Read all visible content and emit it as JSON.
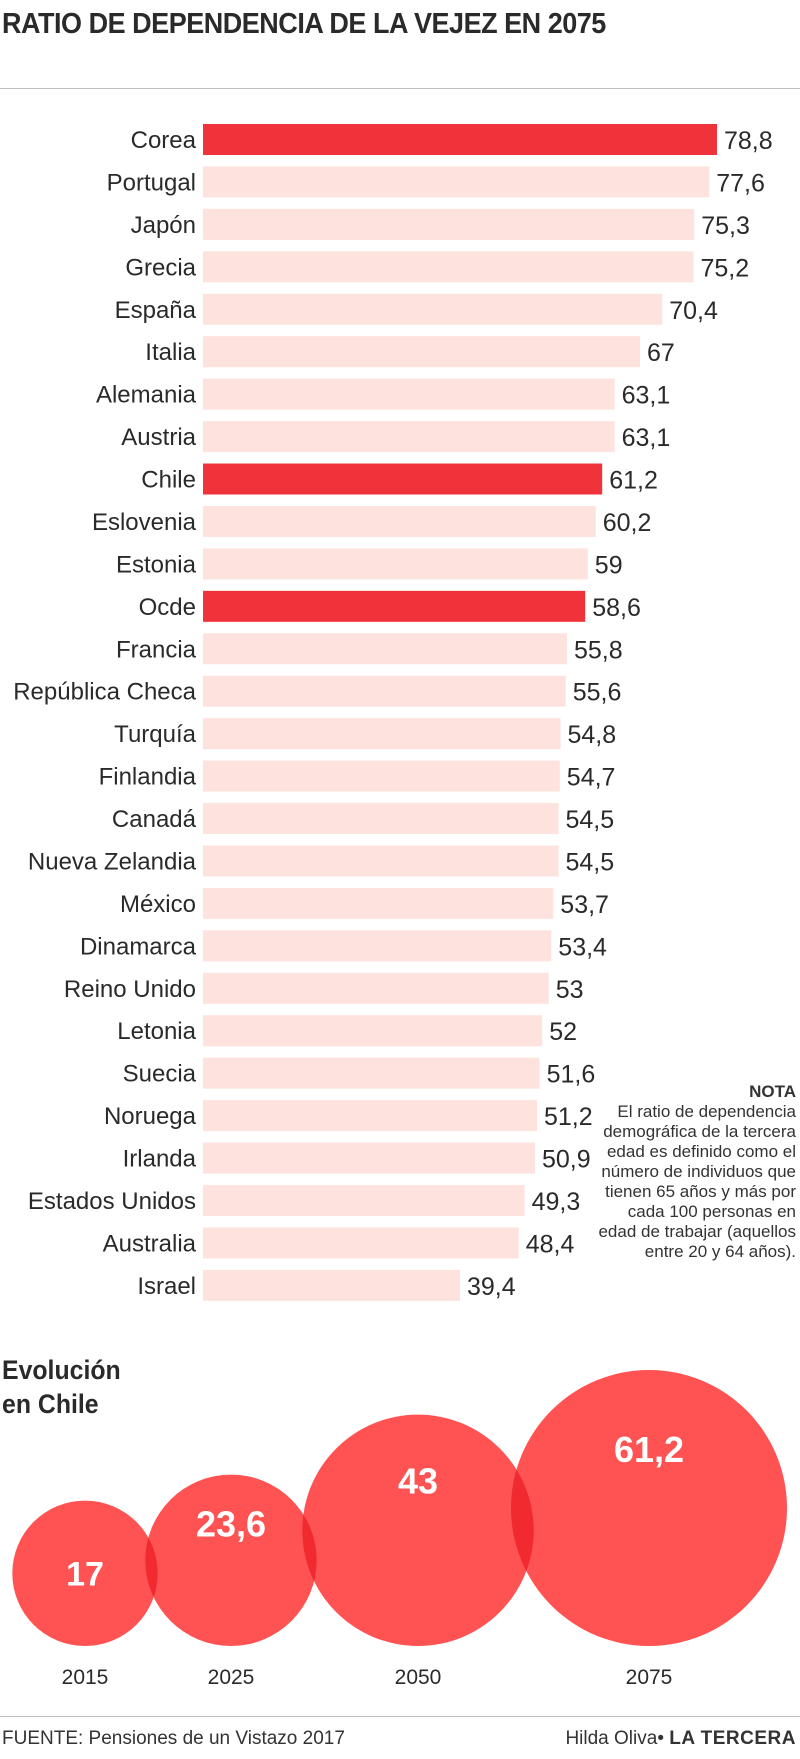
{
  "colors": {
    "highlight": "#f0333a",
    "bar": "#fde2de",
    "bubble": "#ff5252",
    "overlap": "#f02a2f"
  },
  "chart_data": [
    {
      "type": "bar",
      "title": "RATIO DE DEPENDENCIA DE LA VEJEZ EN 2075",
      "orientation": "horizontal",
      "categories": [
        "Corea",
        "Portugal",
        "Japón",
        "Grecia",
        "España",
        "Italia",
        "Alemania",
        "Austria",
        "Chile",
        "Eslovenia",
        "Estonia",
        "Ocde",
        "Francia",
        "República Checa",
        "Turquía",
        "Finlandia",
        "Canadá",
        "Nueva Zelandia",
        "México",
        "Dinamarca",
        "Reino Unido",
        "Letonia",
        "Suecia",
        "Noruega",
        "Irlanda",
        "Estados Unidos",
        "Australia",
        "Israel"
      ],
      "values": [
        78.8,
        77.6,
        75.3,
        75.2,
        70.4,
        67,
        63.1,
        63.1,
        61.2,
        60.2,
        59,
        58.6,
        55.8,
        55.6,
        54.8,
        54.7,
        54.5,
        54.5,
        53.7,
        53.4,
        53,
        52,
        51.6,
        51.2,
        50.9,
        49.3,
        48.4,
        39.4
      ],
      "value_labels": [
        "78,8",
        "77,6",
        "75,3",
        "75,2",
        "70,4",
        "67",
        "63,1",
        "63,1",
        "61,2",
        "60,2",
        "59",
        "58,6",
        "55,8",
        "55,6",
        "54,8",
        "54,7",
        "54,5",
        "54,5",
        "53,7",
        "53,4",
        "53",
        "52",
        "51,6",
        "51,2",
        "50,9",
        "49,3",
        "48,4",
        "39,4"
      ],
      "highlighted": [
        "Corea",
        "Chile",
        "Ocde"
      ],
      "xlim": [
        0,
        78.8
      ],
      "grid": false
    },
    {
      "type": "bubble",
      "title": "Evolución en Chile",
      "title_lines": [
        "Evolución",
        "en Chile"
      ],
      "categories": [
        "2015",
        "2025",
        "2050",
        "2075"
      ],
      "values": [
        17,
        23.6,
        43,
        61.2
      ],
      "value_labels": [
        "17",
        "23,6",
        "43",
        "61,2"
      ]
    }
  ],
  "note": {
    "title": "NOTA",
    "lines": [
      "El ratio de dependencia",
      "demográfica de la tercera",
      "edad es definido como el",
      "número de individuos que",
      "tienen 65 años y más por",
      "cada 100 personas en",
      "edad de trabajar (aquellos",
      "entre 20 y 64 años)."
    ]
  },
  "footer": {
    "source": "FUENTE: Pensiones de un Vistazo 2017",
    "author": "Hilda Oliva",
    "separator": "•",
    "brand": "LA TERCERA"
  }
}
